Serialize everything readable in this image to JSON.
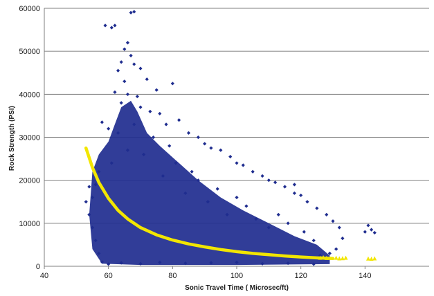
{
  "chart_data": {
    "type": "scatter",
    "title": "",
    "xlabel": "Sonic Travel Time ( Microsec/ft)",
    "ylabel": "Rock Strength (PSI)",
    "xlim": [
      40,
      160
    ],
    "ylim": [
      0,
      60000
    ],
    "x_ticks": [
      "40",
      "60",
      "80",
      "100",
      "120",
      "140"
    ],
    "y_ticks": [
      "0",
      "10000",
      "20000",
      "30000",
      "40000",
      "50000",
      "60000"
    ],
    "grid": {
      "horizontal": true,
      "vertical": false
    },
    "legend": "none",
    "series": [
      {
        "kind": "scatter",
        "color": "#1f2d8f",
        "marker": "diamond",
        "points": [
          [
            59,
            56000
          ],
          [
            61,
            55500
          ],
          [
            62,
            56000
          ],
          [
            67,
            59000
          ],
          [
            68,
            59200
          ],
          [
            66,
            52000
          ],
          [
            65,
            50500
          ],
          [
            67,
            49000
          ],
          [
            64,
            47500
          ],
          [
            68,
            47000
          ],
          [
            63,
            45500
          ],
          [
            70,
            46000
          ],
          [
            72,
            43500
          ],
          [
            65,
            43000
          ],
          [
            80,
            42500
          ],
          [
            75,
            41000
          ],
          [
            62,
            40500
          ],
          [
            66,
            40000
          ],
          [
            69,
            39500
          ],
          [
            64,
            38000
          ],
          [
            70,
            37000
          ],
          [
            73,
            36000
          ],
          [
            76,
            35500
          ],
          [
            82,
            34000
          ],
          [
            78,
            33000
          ],
          [
            58,
            33500
          ],
          [
            60,
            32000
          ],
          [
            85,
            31000
          ],
          [
            88,
            30000
          ],
          [
            90,
            28500
          ],
          [
            92,
            27500
          ],
          [
            95,
            27000
          ],
          [
            98,
            25500
          ],
          [
            100,
            24000
          ],
          [
            102,
            23500
          ],
          [
            105,
            22000
          ],
          [
            108,
            21000
          ],
          [
            110,
            20000
          ],
          [
            112,
            19500
          ],
          [
            115,
            18500
          ],
          [
            118,
            17000
          ],
          [
            120,
            16500
          ],
          [
            122,
            15000
          ],
          [
            118,
            19000
          ],
          [
            125,
            13500
          ],
          [
            128,
            12000
          ],
          [
            130,
            10500
          ],
          [
            132,
            9000
          ],
          [
            141,
            9500
          ],
          [
            142,
            8500
          ],
          [
            140,
            8000
          ],
          [
            143,
            7800
          ],
          [
            133,
            6500
          ],
          [
            131,
            4000
          ],
          [
            129,
            3000
          ],
          [
            126,
            2500
          ],
          [
            124,
            6000
          ],
          [
            121,
            8000
          ],
          [
            116,
            10000
          ],
          [
            113,
            12000
          ],
          [
            110,
            9000
          ],
          [
            106,
            11000
          ],
          [
            103,
            14000
          ],
          [
            100,
            16000
          ],
          [
            97,
            12000
          ],
          [
            94,
            18000
          ],
          [
            91,
            15000
          ],
          [
            88,
            20000
          ],
          [
            86,
            22000
          ],
          [
            84,
            17000
          ],
          [
            81,
            24000
          ],
          [
            79,
            28000
          ],
          [
            77,
            21000
          ],
          [
            74,
            30000
          ],
          [
            71,
            26000
          ],
          [
            68,
            33000
          ],
          [
            66,
            27000
          ],
          [
            63,
            31000
          ],
          [
            61,
            24000
          ],
          [
            57,
            22000
          ],
          [
            56,
            19000
          ],
          [
            55,
            16000
          ],
          [
            54,
            18500
          ],
          [
            53,
            15000
          ],
          [
            54,
            12000
          ],
          [
            55,
            9000
          ],
          [
            56,
            6000
          ],
          [
            57,
            3000
          ],
          [
            58,
            1000
          ],
          [
            60,
            500
          ],
          [
            64,
            800
          ],
          [
            70,
            600
          ],
          [
            76,
            900
          ],
          [
            84,
            700
          ],
          [
            92,
            800
          ],
          [
            100,
            900
          ],
          [
            108,
            600
          ],
          [
            116,
            700
          ],
          [
            124,
            500
          ]
        ]
      },
      {
        "kind": "trendline",
        "color": "#f2e600",
        "points": [
          [
            53,
            27500
          ],
          [
            55,
            23000
          ],
          [
            57,
            19500
          ],
          [
            60,
            15800
          ],
          [
            63,
            13000
          ],
          [
            66,
            11000
          ],
          [
            70,
            9000
          ],
          [
            75,
            7300
          ],
          [
            80,
            6100
          ],
          [
            85,
            5200
          ],
          [
            90,
            4500
          ],
          [
            95,
            3900
          ],
          [
            100,
            3400
          ],
          [
            105,
            3000
          ],
          [
            110,
            2700
          ],
          [
            115,
            2400
          ],
          [
            120,
            2150
          ],
          [
            125,
            1950
          ],
          [
            130,
            1800
          ]
        ]
      },
      {
        "kind": "scatter",
        "color": "#f2e600",
        "marker": "triangle",
        "points": [
          [
            126,
            2000
          ],
          [
            127,
            2100
          ],
          [
            128,
            1950
          ],
          [
            131,
            2000
          ],
          [
            132,
            1850
          ],
          [
            133,
            1900
          ],
          [
            134,
            2000
          ],
          [
            141,
            1800
          ],
          [
            142,
            1750
          ],
          [
            143,
            1850
          ]
        ]
      }
    ]
  }
}
